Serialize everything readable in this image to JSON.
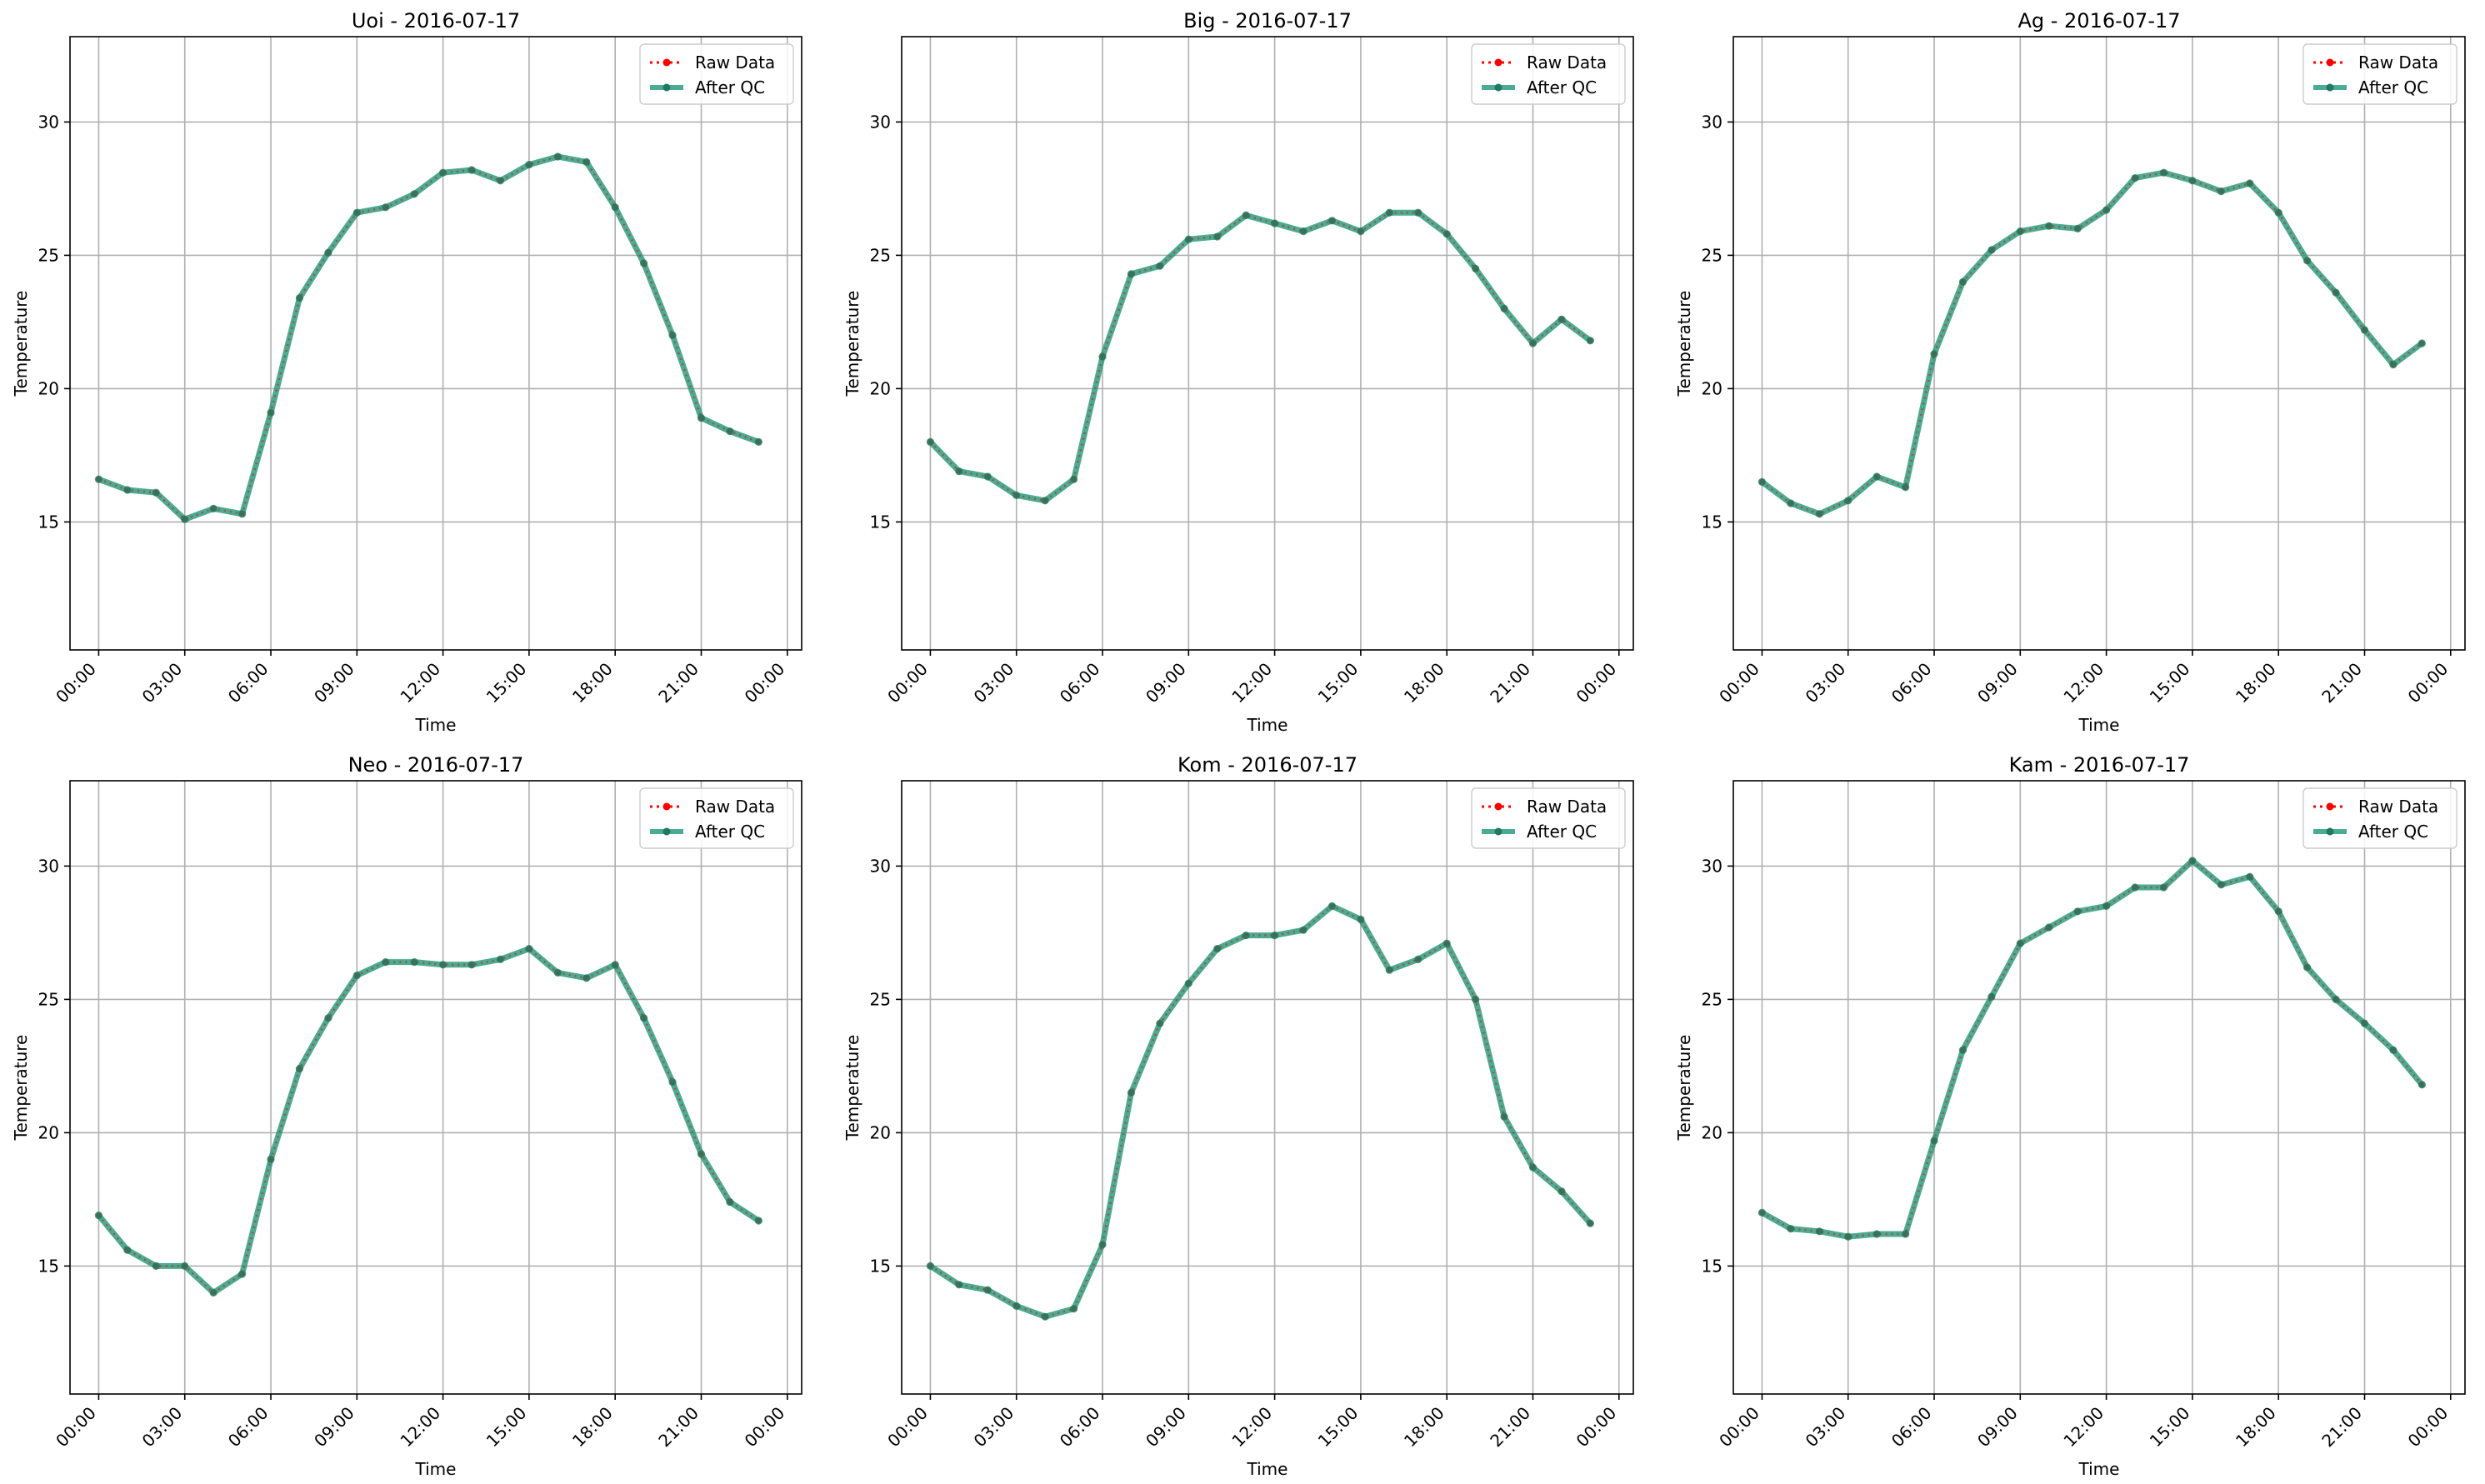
{
  "colors": {
    "raw": "#ff0000",
    "qc": "#2a9d7f",
    "qc_marker": "#1f7a5e",
    "grid": "#b0b0b0",
    "axis": "#000000"
  },
  "legend": {
    "raw_label": "Raw Data",
    "qc_label": "After QC",
    "placement": "top-right"
  },
  "chart_data": [
    {
      "type": "line",
      "title": "Uoi - 2016-07-17",
      "xlabel": "Time",
      "ylabel": "Temperature",
      "ylim": [
        10.2,
        33.2
      ],
      "xlim": [
        "2016-07-16 23:00",
        "2016-07-18 00:30"
      ],
      "yticks": [
        15,
        20,
        25,
        30
      ],
      "xticks": [
        "00:00",
        "03:00",
        "06:00",
        "09:00",
        "12:00",
        "15:00",
        "18:00",
        "21:00",
        "00:00"
      ],
      "grid": true,
      "series": [
        {
          "name": "Raw Data",
          "values": [
            16.6,
            16.2,
            16.1,
            15.1,
            15.5,
            15.3,
            19.1,
            23.4,
            25.1,
            26.6,
            26.8,
            27.3,
            28.1,
            28.2,
            27.8,
            28.4,
            28.7,
            28.5,
            26.8,
            24.7,
            22.0,
            18.9,
            18.4,
            18.0
          ]
        },
        {
          "name": "After QC",
          "values": [
            16.6,
            16.2,
            16.1,
            15.1,
            15.5,
            15.3,
            19.1,
            23.4,
            25.1,
            26.6,
            26.8,
            27.3,
            28.1,
            28.2,
            27.8,
            28.4,
            28.7,
            28.5,
            26.8,
            24.7,
            22.0,
            18.9,
            18.4,
            18.0
          ]
        }
      ]
    },
    {
      "type": "line",
      "title": "Big - 2016-07-17",
      "xlabel": "Time",
      "ylabel": "Temperature",
      "ylim": [
        10.2,
        33.2
      ],
      "xlim": [
        "2016-07-16 23:00",
        "2016-07-18 00:30"
      ],
      "yticks": [
        15,
        20,
        25,
        30
      ],
      "xticks": [
        "00:00",
        "03:00",
        "06:00",
        "09:00",
        "12:00",
        "15:00",
        "18:00",
        "21:00",
        "00:00"
      ],
      "grid": true,
      "series": [
        {
          "name": "Raw Data",
          "values": [
            18.0,
            16.9,
            16.7,
            16.0,
            15.8,
            16.6,
            21.2,
            24.3,
            24.6,
            25.6,
            25.7,
            26.5,
            26.2,
            25.9,
            26.3,
            25.9,
            26.6,
            26.6,
            25.8,
            24.5,
            23.0,
            21.7,
            22.6,
            21.8
          ]
        },
        {
          "name": "After QC",
          "values": [
            18.0,
            16.9,
            16.7,
            16.0,
            15.8,
            16.6,
            21.2,
            24.3,
            24.6,
            25.6,
            25.7,
            26.5,
            26.2,
            25.9,
            26.3,
            25.9,
            26.6,
            26.6,
            25.8,
            24.5,
            23.0,
            21.7,
            22.6,
            21.8
          ]
        }
      ]
    },
    {
      "type": "line",
      "title": "Ag - 2016-07-17",
      "xlabel": "Time",
      "ylabel": "Temperature",
      "ylim": [
        10.2,
        33.2
      ],
      "xlim": [
        "2016-07-16 23:00",
        "2016-07-18 00:30"
      ],
      "yticks": [
        15,
        20,
        25,
        30
      ],
      "xticks": [
        "00:00",
        "03:00",
        "06:00",
        "09:00",
        "12:00",
        "15:00",
        "18:00",
        "21:00",
        "00:00"
      ],
      "grid": true,
      "series": [
        {
          "name": "Raw Data",
          "values": [
            16.5,
            15.7,
            15.3,
            15.8,
            16.7,
            16.3,
            21.3,
            24.0,
            25.2,
            25.9,
            26.1,
            26.0,
            26.7,
            27.9,
            28.1,
            27.8,
            27.4,
            27.7,
            26.6,
            24.8,
            23.6,
            22.2,
            20.9,
            21.7
          ]
        },
        {
          "name": "After QC",
          "values": [
            16.5,
            15.7,
            15.3,
            15.8,
            16.7,
            16.3,
            21.3,
            24.0,
            25.2,
            25.9,
            26.1,
            26.0,
            26.7,
            27.9,
            28.1,
            27.8,
            27.4,
            27.7,
            26.6,
            24.8,
            23.6,
            22.2,
            20.9,
            21.7
          ]
        }
      ]
    },
    {
      "type": "line",
      "title": "Neo - 2016-07-17",
      "xlabel": "Time",
      "ylabel": "Temperature",
      "ylim": [
        10.2,
        33.2
      ],
      "xlim": [
        "2016-07-16 23:00",
        "2016-07-18 00:30"
      ],
      "yticks": [
        15,
        20,
        25,
        30
      ],
      "xticks": [
        "00:00",
        "03:00",
        "06:00",
        "09:00",
        "12:00",
        "15:00",
        "18:00",
        "21:00",
        "00:00"
      ],
      "grid": true,
      "series": [
        {
          "name": "Raw Data",
          "values": [
            16.9,
            15.6,
            15.0,
            15.0,
            14.0,
            14.7,
            19.0,
            22.4,
            24.3,
            25.9,
            26.4,
            26.4,
            26.3,
            26.3,
            26.5,
            26.9,
            26.0,
            25.8,
            26.3,
            24.3,
            21.9,
            19.2,
            17.4,
            16.7
          ]
        },
        {
          "name": "After QC",
          "values": [
            16.9,
            15.6,
            15.0,
            15.0,
            14.0,
            14.7,
            19.0,
            22.4,
            24.3,
            25.9,
            26.4,
            26.4,
            26.3,
            26.3,
            26.5,
            26.9,
            26.0,
            25.8,
            26.3,
            24.3,
            21.9,
            19.2,
            17.4,
            16.7
          ]
        }
      ]
    },
    {
      "type": "line",
      "title": "Kom - 2016-07-17",
      "xlabel": "Time",
      "ylabel": "Temperature",
      "ylim": [
        10.2,
        33.2
      ],
      "xlim": [
        "2016-07-16 23:00",
        "2016-07-18 00:30"
      ],
      "yticks": [
        15,
        20,
        25,
        30
      ],
      "xticks": [
        "00:00",
        "03:00",
        "06:00",
        "09:00",
        "12:00",
        "15:00",
        "18:00",
        "21:00",
        "00:00"
      ],
      "grid": true,
      "series": [
        {
          "name": "Raw Data",
          "values": [
            15.0,
            14.3,
            14.1,
            13.5,
            13.1,
            13.4,
            15.8,
            21.5,
            24.1,
            25.6,
            26.9,
            27.4,
            27.4,
            27.6,
            28.5,
            28.0,
            26.1,
            26.5,
            27.1,
            25.0,
            20.6,
            18.7,
            17.8,
            16.6
          ]
        },
        {
          "name": "After QC",
          "values": [
            15.0,
            14.3,
            14.1,
            13.5,
            13.1,
            13.4,
            15.8,
            21.5,
            24.1,
            25.6,
            26.9,
            27.4,
            27.4,
            27.6,
            28.5,
            28.0,
            26.1,
            26.5,
            27.1,
            25.0,
            20.6,
            18.7,
            17.8,
            16.6
          ]
        }
      ]
    },
    {
      "type": "line",
      "title": "Kam - 2016-07-17",
      "xlabel": "Time",
      "ylabel": "Temperature",
      "ylim": [
        10.2,
        33.2
      ],
      "xlim": [
        "2016-07-16 23:00",
        "2016-07-18 00:30"
      ],
      "yticks": [
        15,
        20,
        25,
        30
      ],
      "xticks": [
        "00:00",
        "03:00",
        "06:00",
        "09:00",
        "12:00",
        "15:00",
        "18:00",
        "21:00",
        "00:00"
      ],
      "grid": true,
      "series": [
        {
          "name": "Raw Data",
          "values": [
            17.0,
            16.4,
            16.3,
            16.1,
            16.2,
            16.2,
            19.7,
            23.1,
            25.1,
            27.1,
            27.7,
            28.3,
            28.5,
            29.2,
            29.2,
            30.2,
            29.3,
            29.6,
            28.3,
            26.2,
            25.0,
            24.1,
            23.1,
            21.8
          ]
        },
        {
          "name": "After QC",
          "values": [
            17.0,
            16.4,
            16.3,
            16.1,
            16.2,
            16.2,
            19.7,
            23.1,
            25.1,
            27.1,
            27.7,
            28.3,
            28.5,
            29.2,
            29.2,
            30.2,
            29.3,
            29.6,
            28.3,
            26.2,
            25.0,
            24.1,
            23.1,
            21.8
          ]
        }
      ]
    }
  ]
}
